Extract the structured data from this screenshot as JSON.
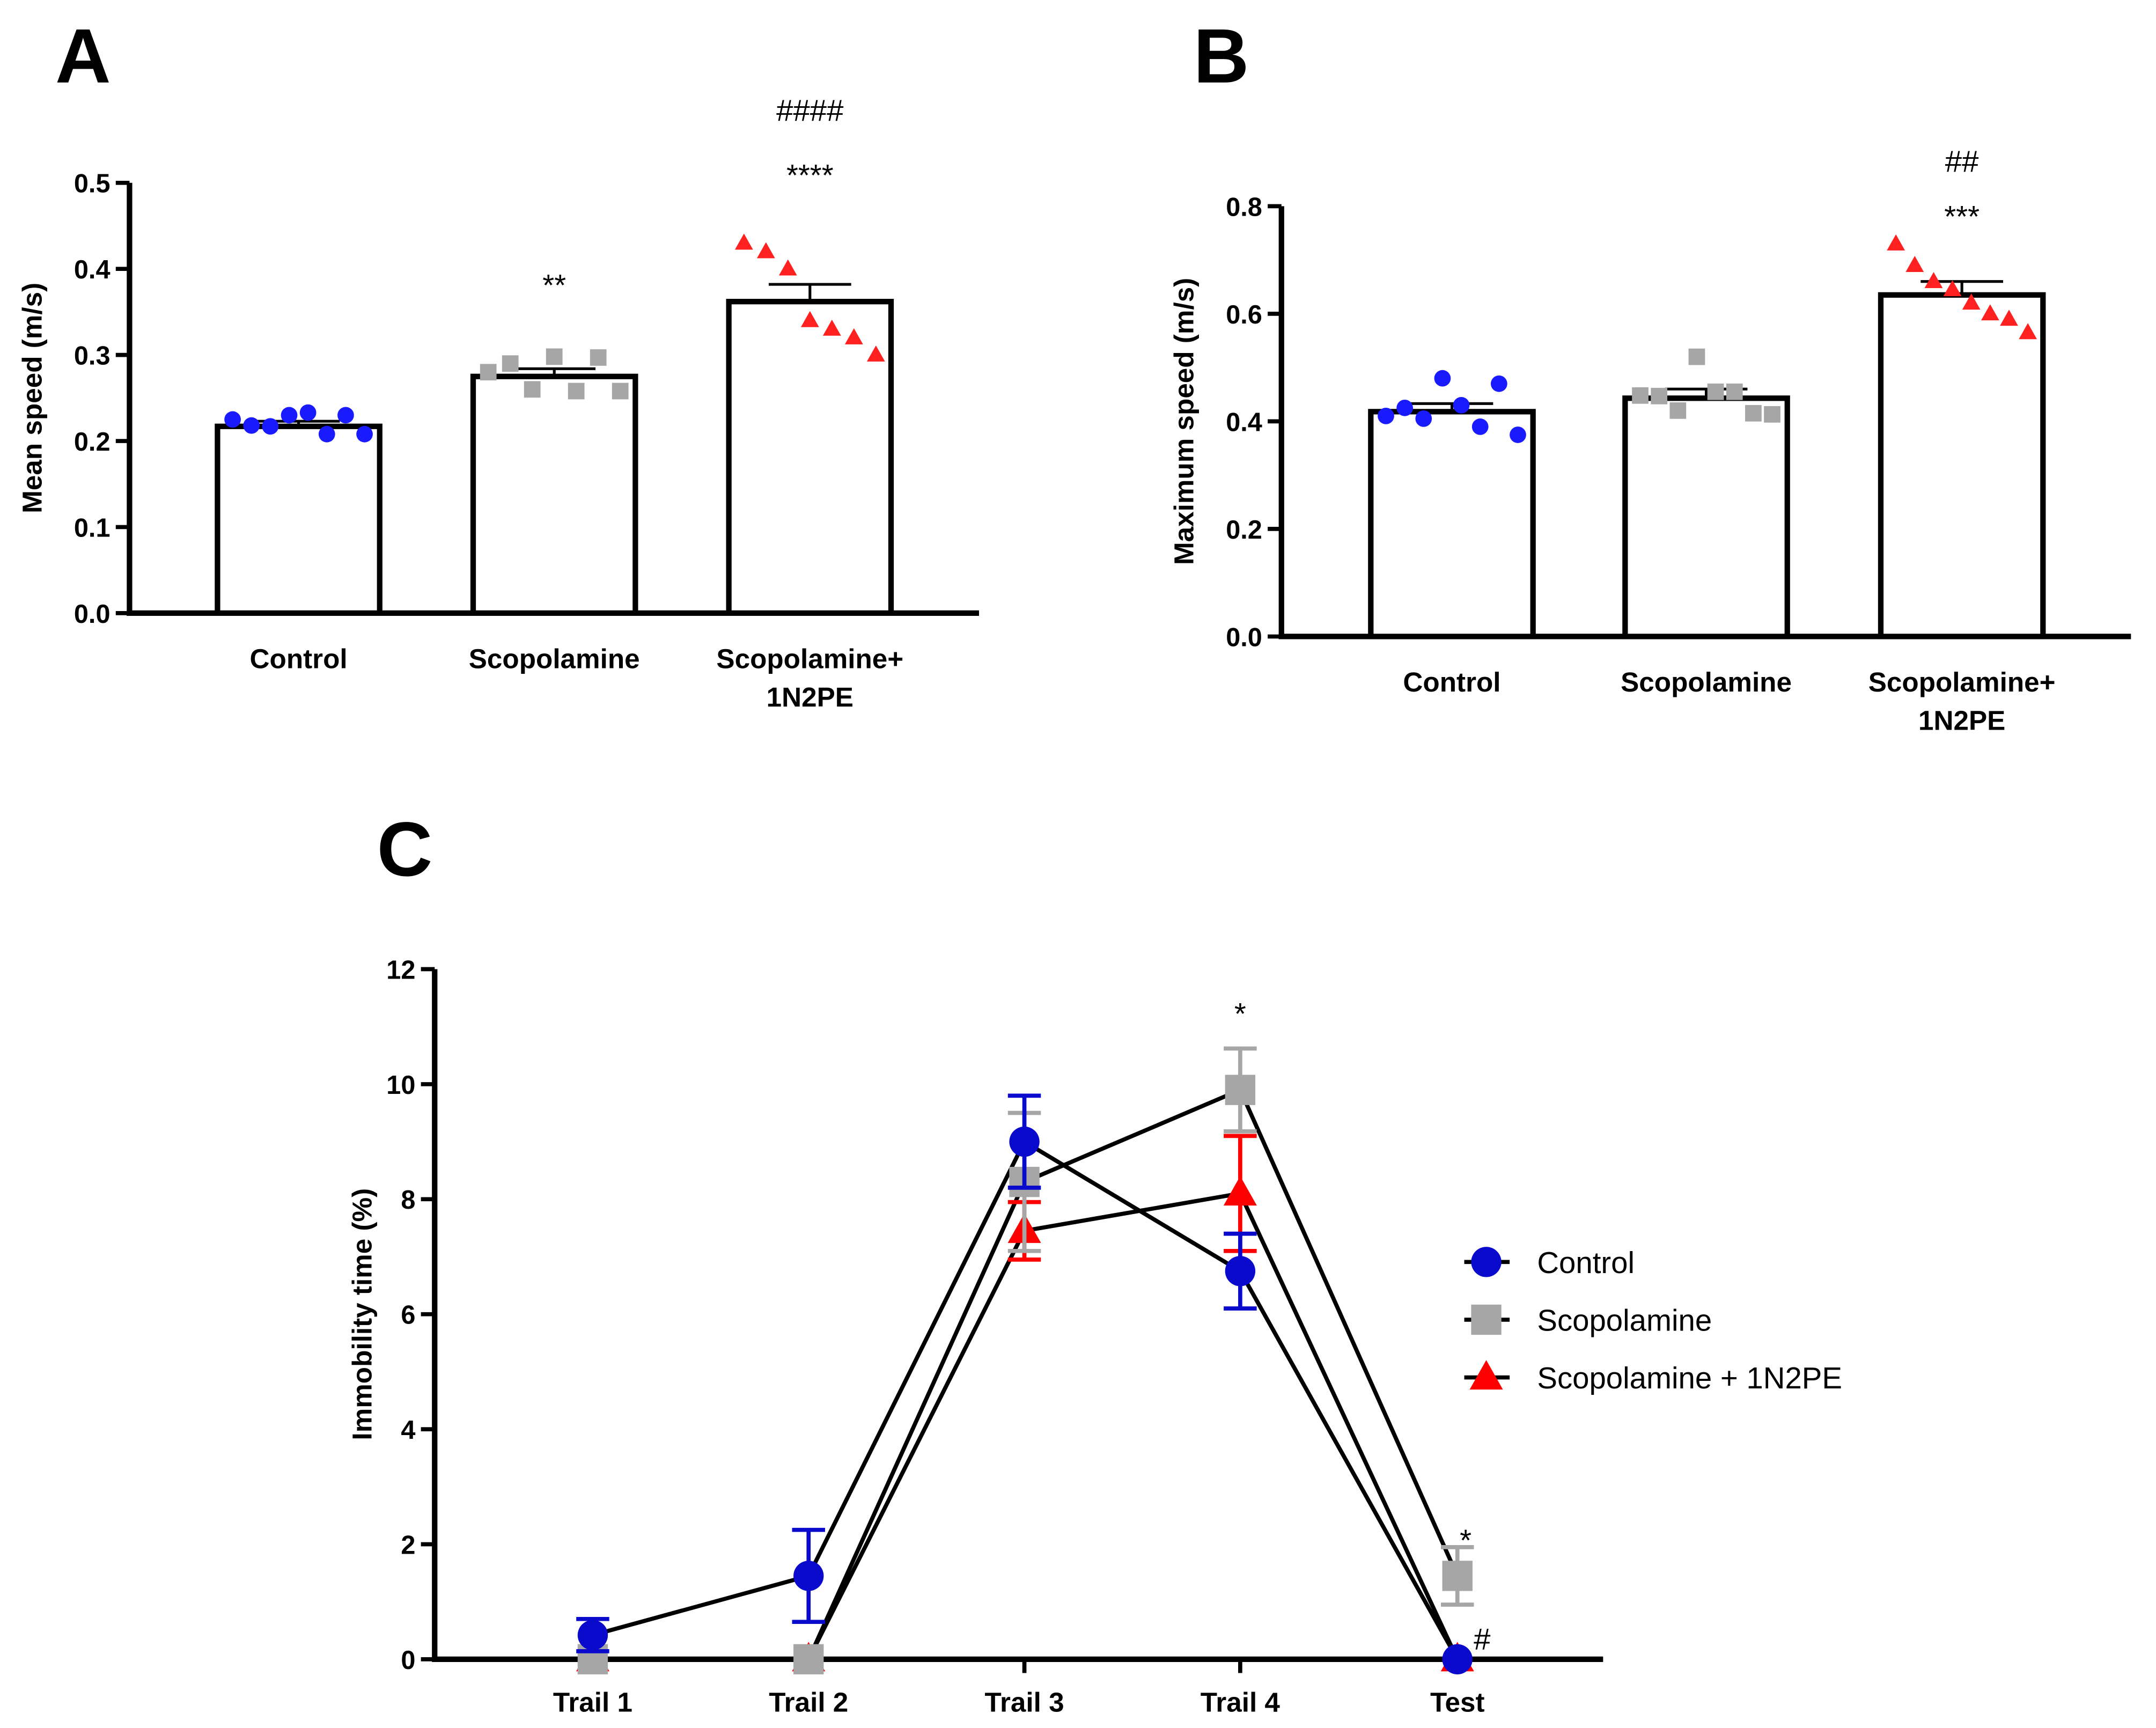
{
  "chart_data": [
    {
      "panel": "A",
      "type": "bar",
      "ylabel": "Mean speed (m/s)",
      "ylim": [
        0,
        0.5
      ],
      "yticks": [
        "0.0",
        "0.1",
        "0.2",
        "0.3",
        "0.4",
        "0.5"
      ],
      "categories": [
        "Control",
        "Scopolamine",
        "Scopolamine+\n1N2PE"
      ],
      "values": [
        0.217,
        0.275,
        0.362
      ],
      "sem": [
        0.006,
        0.009,
        0.02
      ],
      "points": [
        [
          0.225,
          0.218,
          0.217,
          0.23,
          0.233,
          0.208,
          0.23,
          0.208
        ],
        [
          0.28,
          0.29,
          0.26,
          0.298,
          0.258,
          0.297,
          0.258
        ],
        [
          0.43,
          0.42,
          0.4,
          0.34,
          0.33,
          0.32,
          0.3
        ]
      ],
      "annotations": [
        [
          "",
          ""
        ],
        [
          "**",
          ""
        ],
        [
          "****",
          "####"
        ]
      ]
    },
    {
      "panel": "B",
      "type": "bar",
      "ylabel": "Maximum speed (m/s)",
      "ylim": [
        0,
        0.8
      ],
      "yticks": [
        "0.0",
        "0.2",
        "0.4",
        "0.6",
        "0.8"
      ],
      "categories": [
        "Control",
        "Scopolamine",
        "Scopolamine+\n1N2PE"
      ],
      "values": [
        0.418,
        0.443,
        0.635
      ],
      "sem": [
        0.015,
        0.017,
        0.025
      ],
      "points": [
        [
          0.41,
          0.425,
          0.405,
          0.48,
          0.43,
          0.39,
          0.47,
          0.375
        ],
        [
          0.448,
          0.447,
          0.42,
          0.52,
          0.455,
          0.455,
          0.415,
          0.413
        ],
        [
          0.73,
          0.69,
          0.66,
          0.645,
          0.62,
          0.6,
          0.59,
          0.565
        ]
      ],
      "annotations": [
        [
          "",
          ""
        ],
        [
          "",
          ""
        ],
        [
          "***",
          "##"
        ]
      ]
    },
    {
      "panel": "C",
      "type": "line",
      "ylabel": "Immobility time (%)",
      "ylim": [
        0,
        12
      ],
      "yticks": [
        "0",
        "2",
        "4",
        "6",
        "8",
        "10",
        "12"
      ],
      "categories": [
        "Trail 1",
        "Trail 2",
        "Trail 3",
        "Trail 4",
        "Test"
      ],
      "series": [
        {
          "name": "Control",
          "color": "#0a0acc",
          "marker": "circle",
          "values": [
            0.42,
            1.45,
            9.0,
            6.75,
            0.0
          ],
          "sem": [
            0.28,
            0.8,
            0.8,
            0.65,
            0
          ]
        },
        {
          "name": "Scopolamine",
          "color": "#a6a6a6",
          "marker": "square",
          "values": [
            0.0,
            0.0,
            8.3,
            9.9,
            1.45
          ],
          "sem": [
            0,
            0,
            1.2,
            0.72,
            0.5
          ]
        },
        {
          "name": "Scopolamine + 1N2PE",
          "color": "#ff0000",
          "marker": "triangle",
          "values": [
            0.0,
            0.0,
            7.45,
            8.1,
            0.0
          ],
          "sem": [
            0,
            0,
            0.5,
            1.0,
            0
          ]
        }
      ],
      "annotations": [
        {
          "text": "*",
          "category": "Trail 4"
        },
        {
          "text": "*",
          "category": "Test"
        },
        {
          "text": "#",
          "category": "Test"
        }
      ],
      "legend": "right"
    }
  ],
  "colors": {
    "control": "#1a1aff",
    "scopolamine": "#a6a6a6",
    "combo": "#ff2020"
  }
}
